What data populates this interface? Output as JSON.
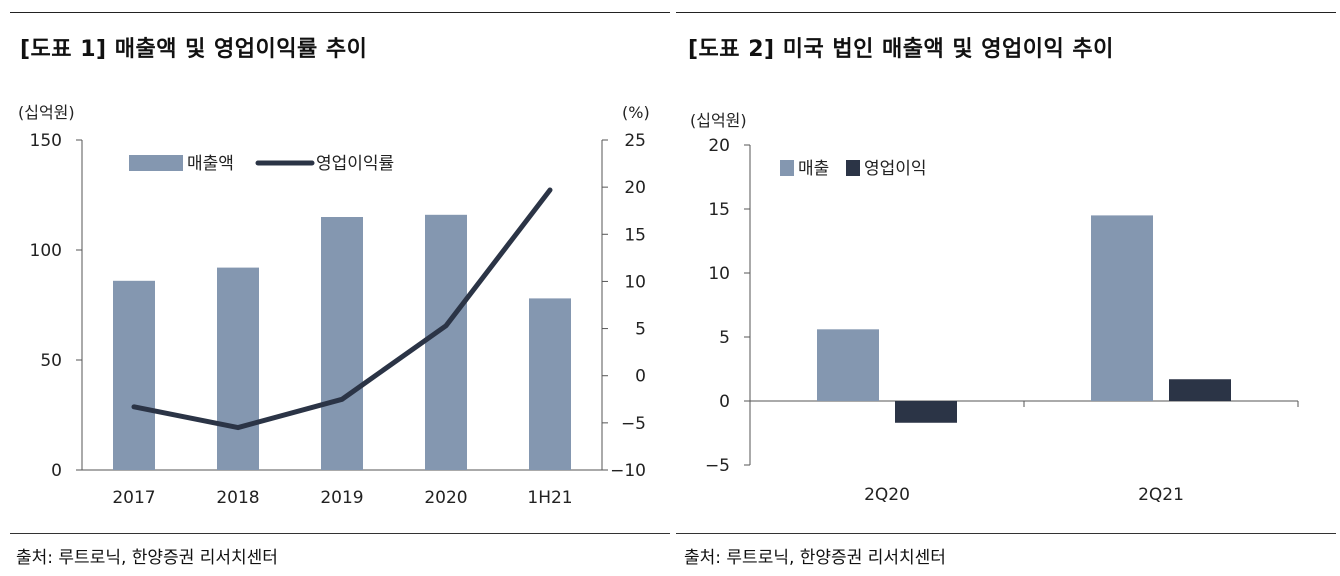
{
  "panels": [
    {
      "title": "[도표 1] 매출액 및 영업이익률 추이",
      "source": "출처: 루트로닉, 한양증권 리서치센터"
    },
    {
      "title": "[도표 2] 미국 법인 매출액 및 영업이익 추이",
      "source": "출처: 루트로닉, 한양증권 리서치센터"
    }
  ],
  "chart_data": [
    {
      "type": "bar",
      "categories": [
        "2017",
        "2018",
        "2019",
        "2020",
        "1H21"
      ],
      "series": [
        {
          "name": "매출액",
          "type": "bar",
          "axis": "left",
          "color": "#8497b0",
          "values": [
            86,
            92,
            115,
            116,
            78
          ]
        },
        {
          "name": "영업이익률",
          "type": "line",
          "axis": "right",
          "color": "#2b3446",
          "values": [
            -3.3,
            -5.5,
            -2.5,
            5.3,
            19.7
          ]
        }
      ],
      "y_left": {
        "unit": "(십억원)",
        "range": [
          0,
          150
        ],
        "ticks": [
          "0",
          "50",
          "100",
          "150"
        ]
      },
      "y_right": {
        "unit": "(%)",
        "range": [
          -10,
          25
        ],
        "ticks": [
          "−10",
          "−5",
          "0",
          "5",
          "10",
          "15",
          "20",
          "25"
        ]
      },
      "legend_position": "top-left",
      "grid": false
    },
    {
      "type": "bar",
      "categories": [
        "2Q20",
        "2Q21"
      ],
      "series": [
        {
          "name": "매출",
          "color": "#8497b0",
          "values": [
            5.6,
            14.5
          ]
        },
        {
          "name": "영업이익",
          "color": "#2b3446",
          "values": [
            -1.7,
            1.7
          ]
        }
      ],
      "y_axis": {
        "unit": "(십억원)",
        "range": [
          -5,
          20
        ],
        "ticks": [
          "−5",
          "0",
          "5",
          "10",
          "15",
          "20"
        ]
      },
      "legend_position": "top-left",
      "grid": false
    }
  ]
}
